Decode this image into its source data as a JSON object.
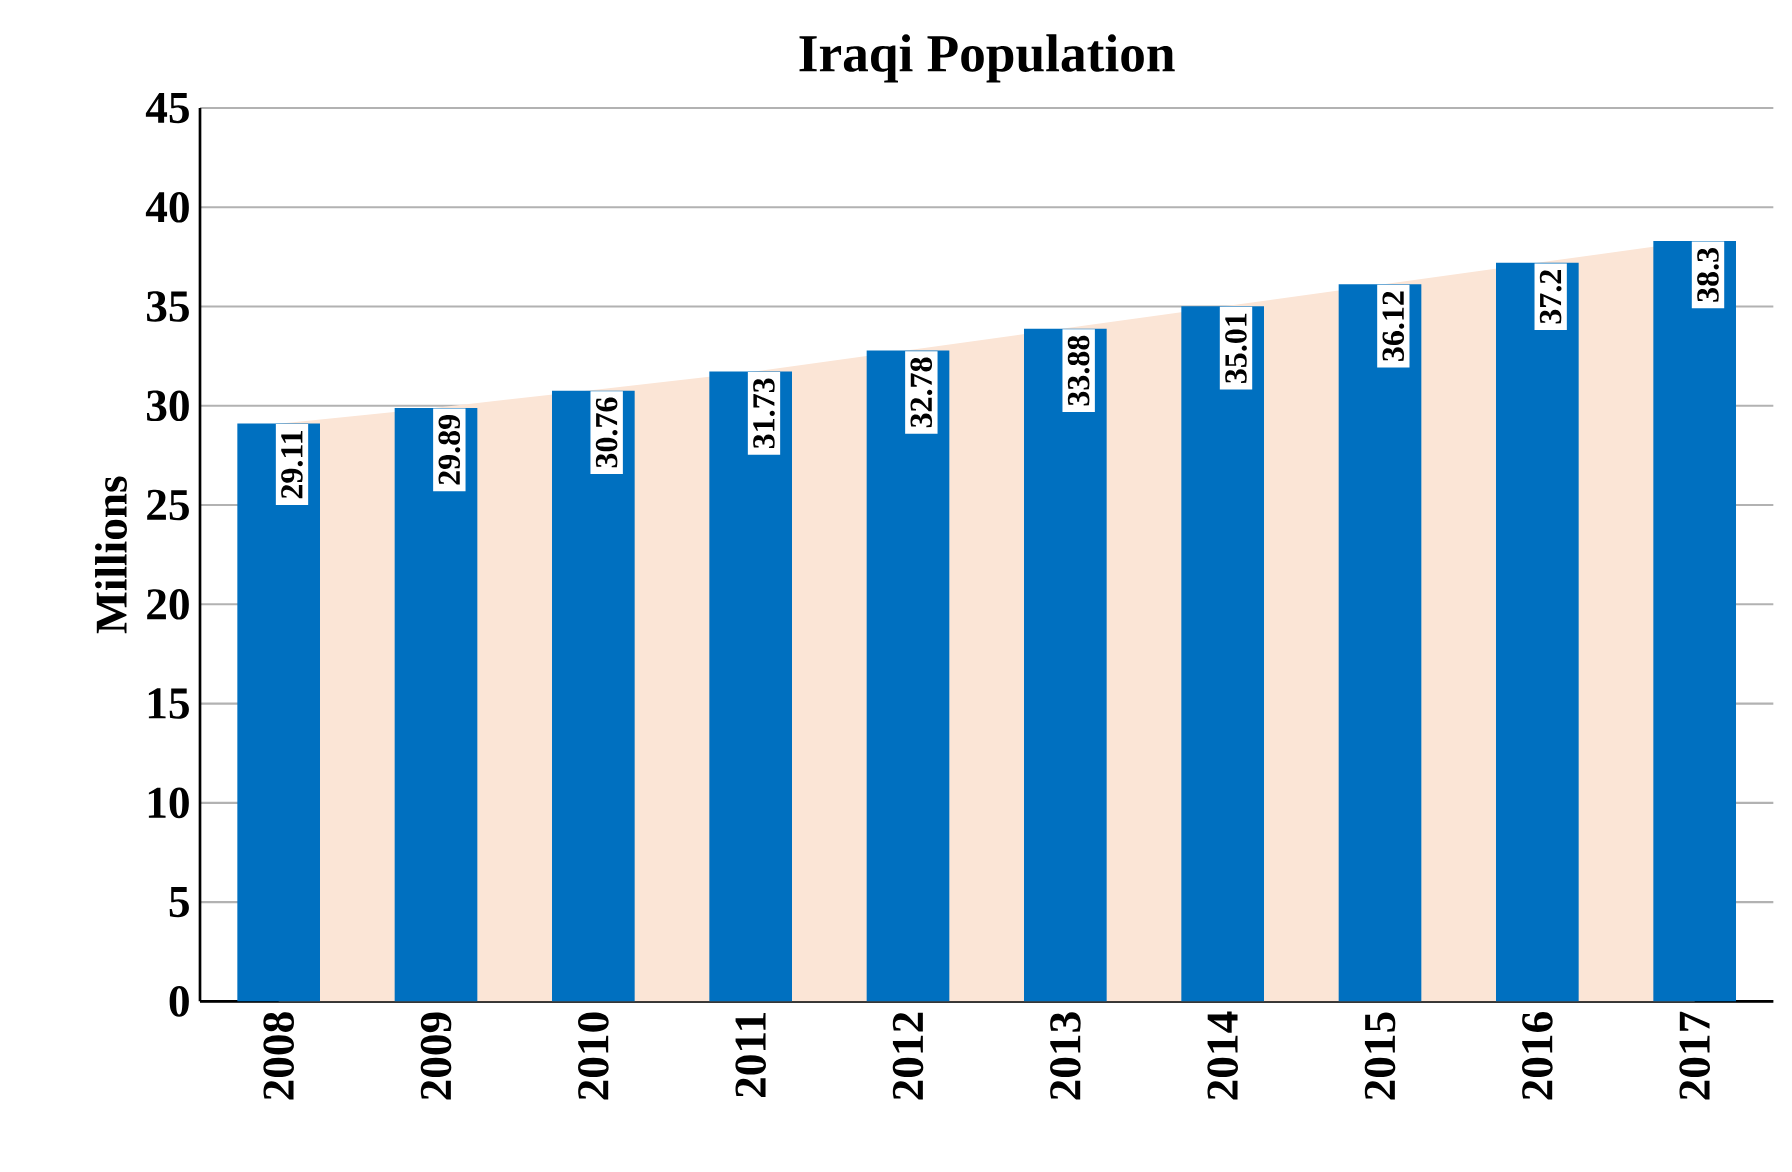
{
  "chart_data": {
    "type": "bar",
    "title": "Iraqi Population",
    "ylabel": "Millions",
    "categories": [
      "2008",
      "2009",
      "2010",
      "2011",
      "2012",
      "2013",
      "2014",
      "2015",
      "2016",
      "2017"
    ],
    "series": [
      {
        "type": "area",
        "color": "#fbe5d6",
        "values": [
          29.1,
          29.9,
          30.8,
          31.7,
          32.8,
          33.9,
          35.0,
          36.1,
          37.2,
          38.3
        ]
      },
      {
        "color": "#0070c0",
        "values": [
          29.11,
          29.89,
          30.76,
          31.73,
          32.78,
          33.88,
          35.01,
          36.12,
          37.2,
          38.3
        ],
        "value_labels": [
          "29.11",
          "29.89",
          "30.76",
          "31.73",
          "32.78",
          "33.88",
          "35.01",
          "36.12",
          "37.2",
          "38.3"
        ]
      }
    ],
    "ylim": [
      0,
      45
    ],
    "yticks": [
      0,
      5,
      10,
      15,
      20,
      25,
      30,
      35,
      40,
      45
    ],
    "grid": "y"
  }
}
